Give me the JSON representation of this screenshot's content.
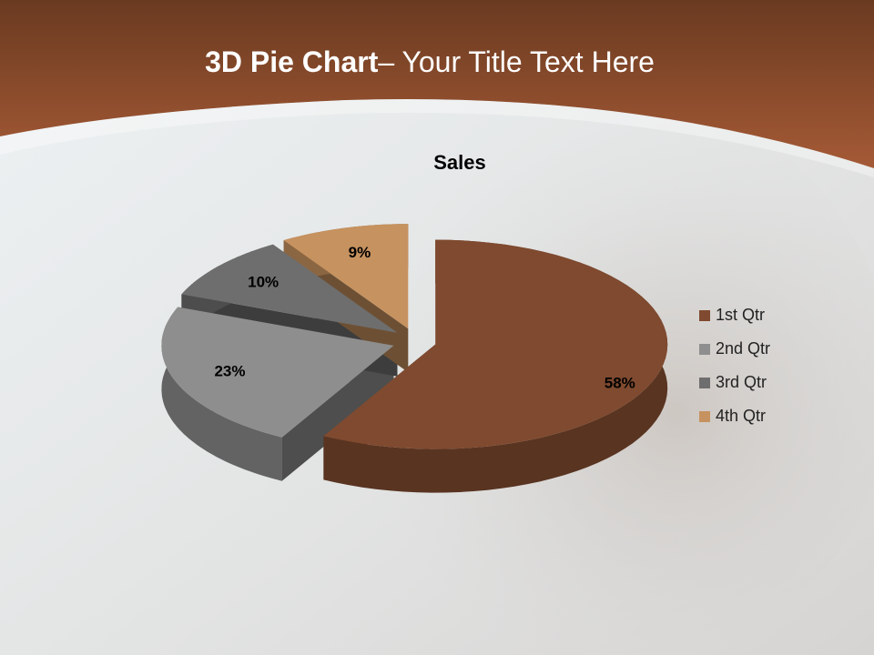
{
  "slide": {
    "title_bold": "3D Pie Chart",
    "title_rest": "– Your Title Text Here"
  },
  "chart_data": {
    "type": "pie",
    "title": "Sales",
    "categories": [
      "1st Qtr",
      "2nd Qtr",
      "3rd Qtr",
      "4th Qtr"
    ],
    "values": [
      58,
      23,
      10,
      9
    ],
    "value_labels": [
      "58%",
      "23%",
      "10%",
      "9%"
    ],
    "colors": [
      "#7f4a2f",
      "#8e8e8e",
      "#6e6e6e",
      "#c6925f"
    ],
    "legend": "right"
  }
}
